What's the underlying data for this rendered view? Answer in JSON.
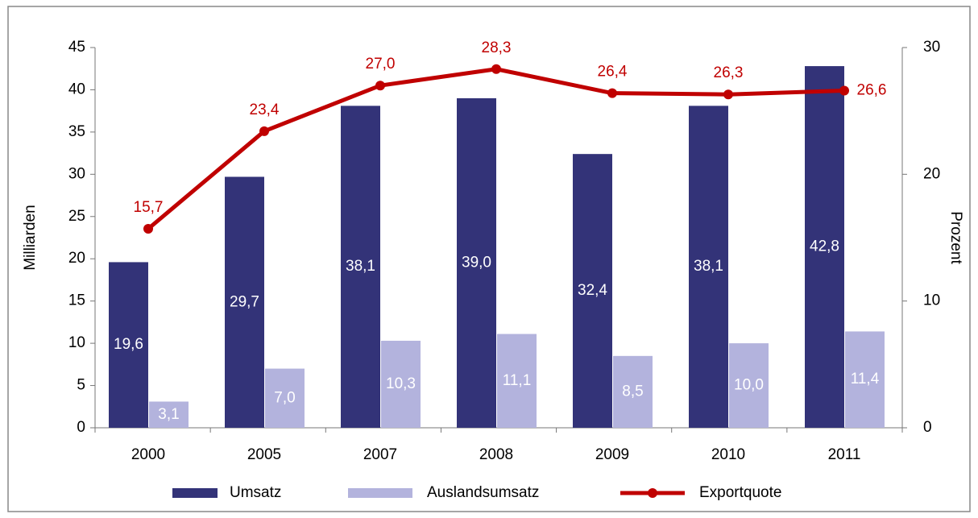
{
  "chart_data": {
    "type": "bar",
    "categories": [
      "2000",
      "2005",
      "2007",
      "2008",
      "2009",
      "2010",
      "2011"
    ],
    "series": [
      {
        "name": "Umsatz",
        "color": "#333378",
        "values": [
          19.6,
          29.7,
          38.1,
          39.0,
          32.4,
          38.1,
          42.8
        ],
        "value_labels": [
          "19,6",
          "29,7",
          "38,1",
          "39,0",
          "32,4",
          "38,1",
          "42,8"
        ]
      },
      {
        "name": "Auslandsumsatz",
        "color": "#b3b3dd",
        "values": [
          3.1,
          7.0,
          10.3,
          11.1,
          8.5,
          10.0,
          11.4
        ],
        "value_labels": [
          "3,1",
          "7,0",
          "10,3",
          "11,1",
          "8,5",
          "10,0",
          "11,4"
        ]
      },
      {
        "name": "Exportquote",
        "type": "line",
        "axis": "y2",
        "color": "#c00000",
        "values": [
          15.7,
          23.4,
          27.0,
          28.3,
          26.4,
          26.3,
          26.6
        ],
        "value_labels": [
          "15,7",
          "23,4",
          "27,0",
          "28,3",
          "26,4",
          "26,3",
          "26,6"
        ]
      }
    ],
    "ylabel": "Milliarden",
    "y2label": "Prozent",
    "ylim": [
      0,
      45
    ],
    "yticks": [
      0,
      5,
      10,
      15,
      20,
      25,
      30,
      35,
      40,
      45
    ],
    "y2lim": [
      0,
      30
    ],
    "y2ticks": [
      0,
      10,
      20,
      30
    ],
    "legend": "bottom"
  }
}
